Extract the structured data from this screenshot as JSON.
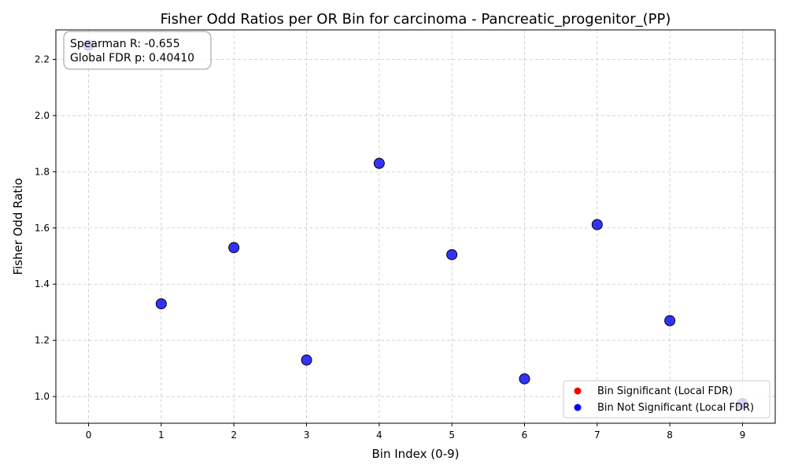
{
  "chart_data": {
    "type": "scatter",
    "title": "Fisher Odd Ratios per OR Bin for carcinoma - Pancreatic_progenitor_(PP)",
    "xlabel": "Bin Index (0-9)",
    "ylabel": "Fisher Odd Ratio",
    "x_ticks": [
      "0",
      "1",
      "2",
      "3",
      "4",
      "5",
      "6",
      "7",
      "8",
      "9"
    ],
    "y_ticks": [
      "1.0",
      "1.2",
      "1.4",
      "1.6",
      "1.8",
      "2.0",
      "2.2"
    ],
    "xlim": [
      -0.45,
      9.45
    ],
    "ylim": [
      0.905,
      2.305
    ],
    "grid": true,
    "series": [
      {
        "name": "Bin Not Significant (Local FDR)",
        "color": "#0000ff",
        "points": [
          {
            "x": 0,
            "y": 2.25
          },
          {
            "x": 1,
            "y": 1.33
          },
          {
            "x": 2,
            "y": 1.53
          },
          {
            "x": 3,
            "y": 1.13
          },
          {
            "x": 4,
            "y": 1.83
          },
          {
            "x": 5,
            "y": 1.505
          },
          {
            "x": 6,
            "y": 1.063
          },
          {
            "x": 7,
            "y": 1.612
          },
          {
            "x": 8,
            "y": 1.27
          },
          {
            "x": 9,
            "y": 0.975
          }
        ]
      },
      {
        "name": "Bin Significant (Local FDR)",
        "color": "#ff0000",
        "points": []
      }
    ],
    "legend": {
      "placement": "lower-right",
      "entries": [
        {
          "label": "Bin Significant (Local FDR)",
          "color": "#ff0000"
        },
        {
          "label": "Bin Not Significant (Local FDR)",
          "color": "#0000ff"
        }
      ]
    },
    "annotation": {
      "placement": "top-left",
      "lines": [
        "Spearman R: -0.655",
        "Global FDR p: 0.40410"
      ]
    }
  }
}
